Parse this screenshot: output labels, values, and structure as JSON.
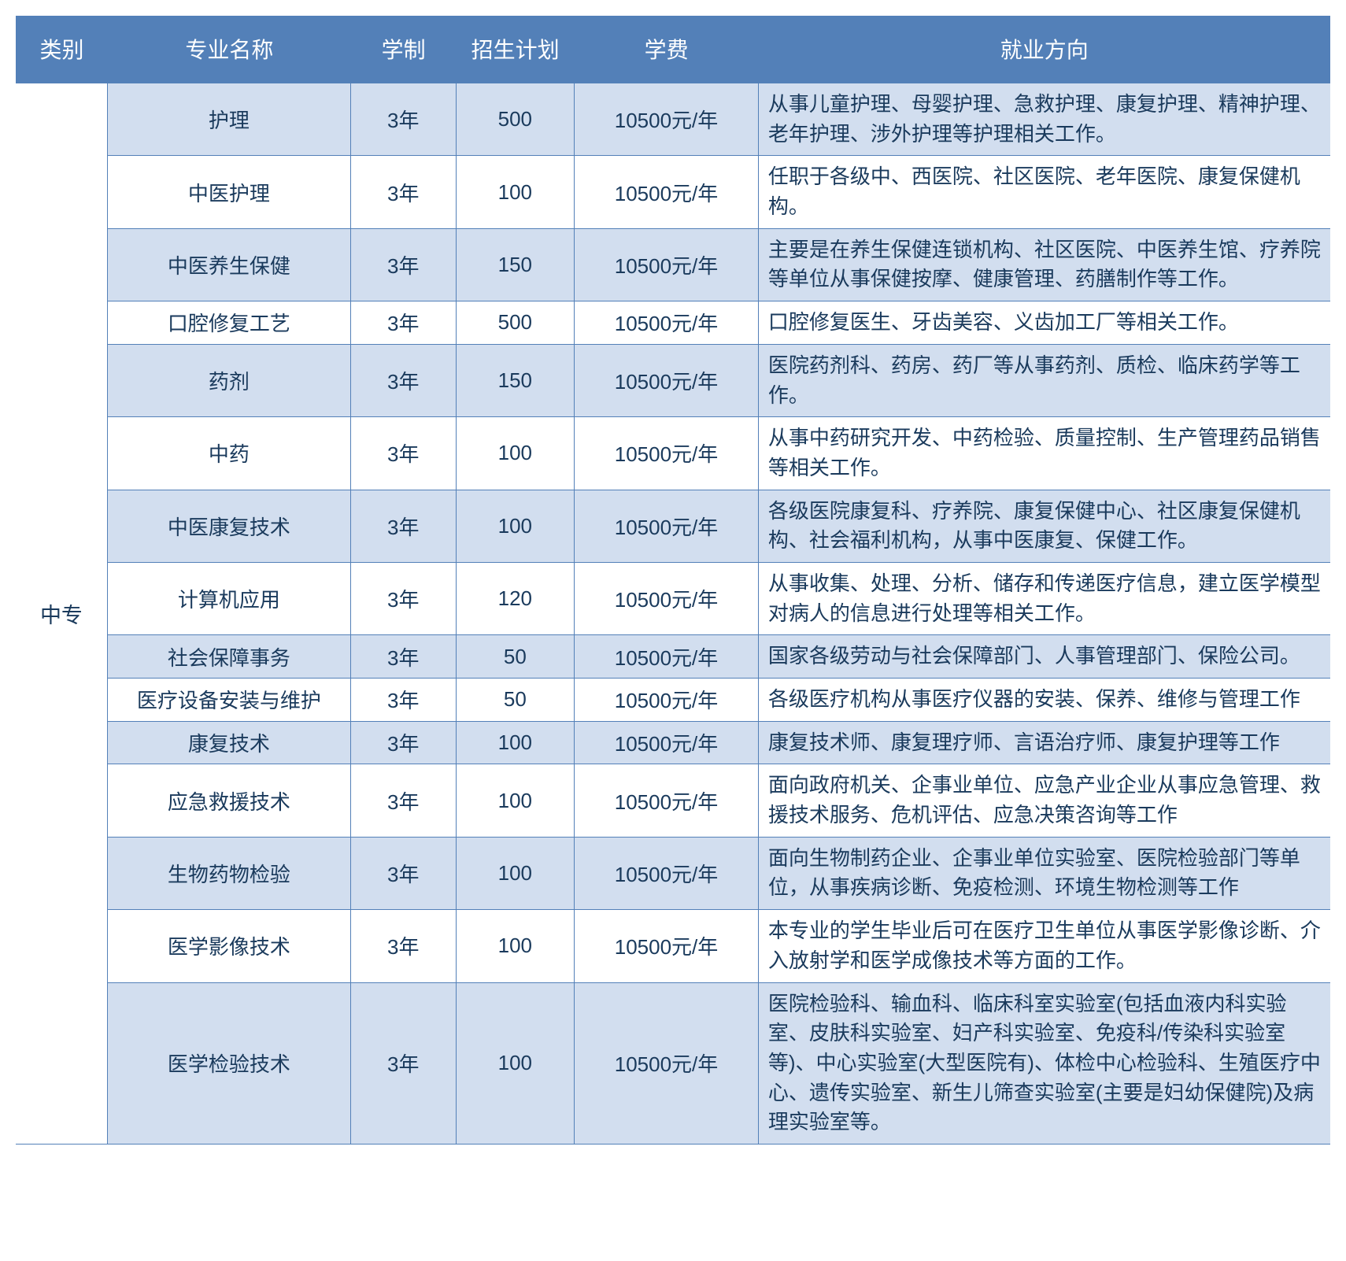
{
  "header": {
    "category": "类别",
    "major": "专业名称",
    "duration": "学制",
    "plan": "招生计划",
    "fee": "学费",
    "career": "就业方向"
  },
  "category": "中专",
  "colors": {
    "header_bg": "#5380b8",
    "header_text": "#ffffff",
    "row_odd_bg": "#d2deef",
    "row_even_bg": "#ffffff",
    "text_color": "#1a3a5c",
    "border_color": "#5380b8"
  },
  "fonts": {
    "header_size": 28,
    "body_size": 26
  },
  "rows": [
    {
      "major": "护理",
      "duration": "3年",
      "plan": "500",
      "fee": "10500元/年",
      "career": "从事儿童护理、母婴护理、急救护理、康复护理、精神护理、老年护理、涉外护理等护理相关工作。"
    },
    {
      "major": "中医护理",
      "duration": "3年",
      "plan": "100",
      "fee": "10500元/年",
      "career": "任职于各级中、西医院、社区医院、老年医院、康复保健机构。"
    },
    {
      "major": "中医养生保健",
      "duration": "3年",
      "plan": "150",
      "fee": "10500元/年",
      "career": "主要是在养生保健连锁机构、社区医院、中医养生馆、疗养院等单位从事保健按摩、健康管理、药膳制作等工作。"
    },
    {
      "major": "口腔修复工艺",
      "duration": "3年",
      "plan": "500",
      "fee": "10500元/年",
      "career": "口腔修复医生、牙齿美容、义齿加工厂等相关工作。"
    },
    {
      "major": "药剂",
      "duration": "3年",
      "plan": "150",
      "fee": "10500元/年",
      "career": "医院药剂科、药房、药厂等从事药剂、质检、临床药学等工作。"
    },
    {
      "major": "中药",
      "duration": "3年",
      "plan": "100",
      "fee": "10500元/年",
      "career": "从事中药研究开发、中药检验、质量控制、生产管理药品销售等相关工作。"
    },
    {
      "major": "中医康复技术",
      "duration": "3年",
      "plan": "100",
      "fee": "10500元/年",
      "career": "各级医院康复科、疗养院、康复保健中心、社区康复保健机构、社会福利机构，从事中医康复、保健工作。"
    },
    {
      "major": "计算机应用",
      "duration": "3年",
      "plan": "120",
      "fee": "10500元/年",
      "career": "从事收集、处理、分析、储存和传递医疗信息，建立医学模型对病人的信息进行处理等相关工作。"
    },
    {
      "major": "社会保障事务",
      "duration": "3年",
      "plan": "50",
      "fee": "10500元/年",
      "career": "国家各级劳动与社会保障部门、人事管理部门、保险公司。"
    },
    {
      "major": "医疗设备安装与维护",
      "duration": "3年",
      "plan": "50",
      "fee": "10500元/年",
      "career": "各级医疗机构从事医疗仪器的安装、保养、维修与管理工作"
    },
    {
      "major": "康复技术",
      "duration": "3年",
      "plan": "100",
      "fee": "10500元/年",
      "career": "康复技术师、康复理疗师、言语治疗师、康复护理等工作"
    },
    {
      "major": "应急救援技术",
      "duration": "3年",
      "plan": "100",
      "fee": "10500元/年",
      "career": "面向政府机关、企事业单位、应急产业企业从事应急管理、救援技术服务、危机评估、应急决策咨询等工作"
    },
    {
      "major": "生物药物检验",
      "duration": "3年",
      "plan": "100",
      "fee": "10500元/年",
      "career": "面向生物制药企业、企事业单位实验室、医院检验部门等单位，从事疾病诊断、免疫检测、环境生物检测等工作"
    },
    {
      "major": "医学影像技术",
      "duration": "3年",
      "plan": "100",
      "fee": "10500元/年",
      "career": "本专业的学生毕业后可在医疗卫生单位从事医学影像诊断、介入放射学和医学成像技术等方面的工作。"
    },
    {
      "major": "医学检验技术",
      "duration": "3年",
      "plan": "100",
      "fee": "10500元/年",
      "career": "医院检验科、输血科、临床科室实验室(包括血液内科实验室、皮肤科实验室、妇产科实验室、免疫科/传染科实验室等)、中心实验室(大型医院有)、体检中心检验科、生殖医疗中心、遗传实验室、新生儿筛查实验室(主要是妇幼保健院)及病理实验室等。"
    }
  ]
}
